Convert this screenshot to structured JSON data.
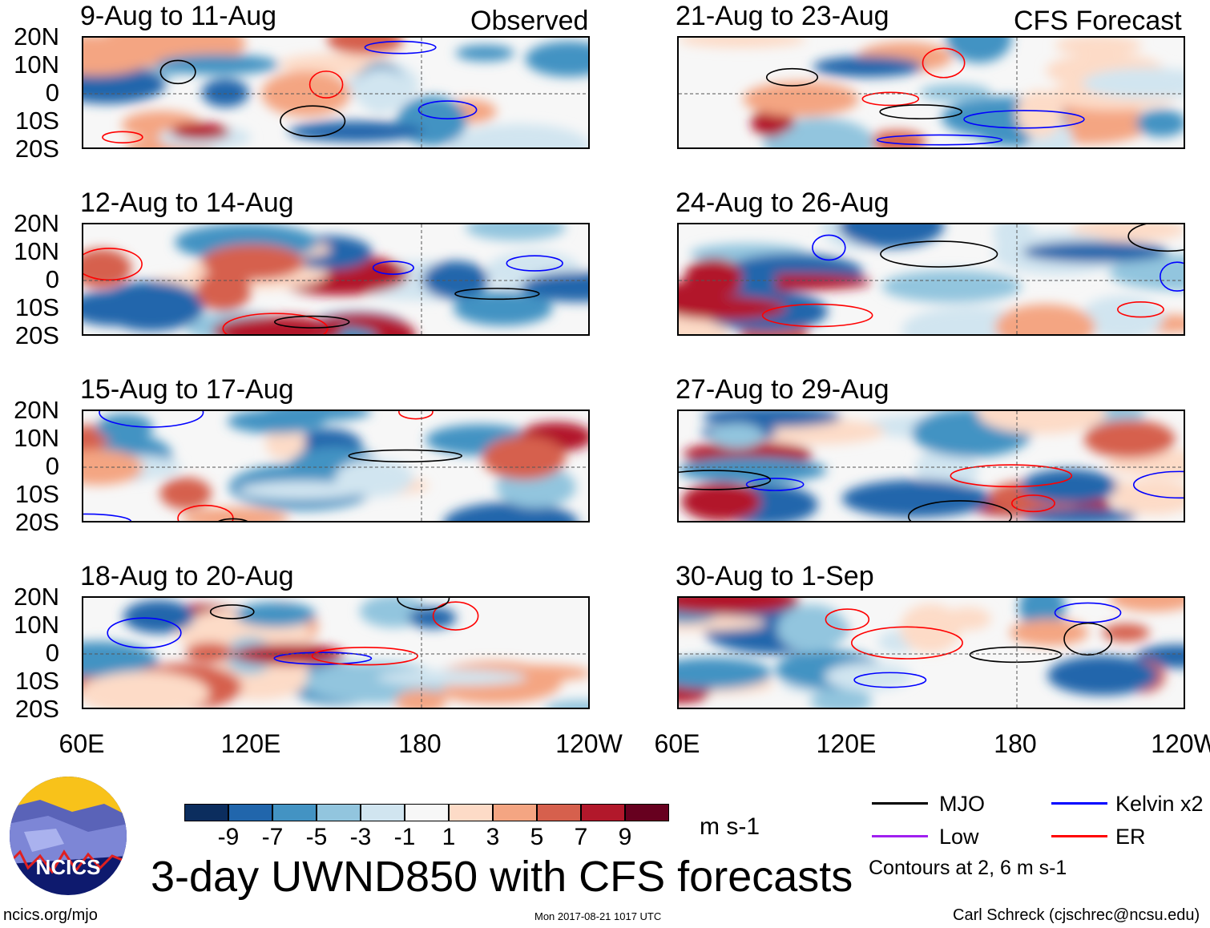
{
  "panels_left": [
    {
      "title": "9-Aug to 11-Aug",
      "label": "Observed"
    },
    {
      "title": "12-Aug to 14-Aug"
    },
    {
      "title": "15-Aug to 17-Aug"
    },
    {
      "title": "18-Aug to 20-Aug"
    }
  ],
  "panels_right": [
    {
      "title": "21-Aug to 23-Aug",
      "label": "CFS Forecast"
    },
    {
      "title": "24-Aug to 26-Aug"
    },
    {
      "title": "27-Aug to 29-Aug"
    },
    {
      "title": "30-Aug to 1-Sep"
    }
  ],
  "lat_labels": [
    "20N",
    "10N",
    "0",
    "10S",
    "20S"
  ],
  "lon_labels": [
    "60E",
    "120E",
    "180",
    "120W"
  ],
  "colorbar": {
    "colors": [
      "#0b2d5e",
      "#2166ac",
      "#4393c3",
      "#92c5de",
      "#d1e5f0",
      "#f7f7f7",
      "#fddbc7",
      "#f4a582",
      "#d6604d",
      "#b2182b",
      "#67001f"
    ],
    "labels": [
      "-9",
      "-7",
      "-5",
      "-3",
      "-1",
      "1",
      "3",
      "5",
      "7",
      "9"
    ],
    "units": "m s-1"
  },
  "title": "3-day UWND850 with CFS forecasts",
  "legend": {
    "items": [
      {
        "label": "MJO",
        "color": "#000000"
      },
      {
        "label": "Kelvin x2",
        "color": "#0000ff"
      },
      {
        "label": "Low",
        "color": "#a020f0"
      },
      {
        "label": "ER",
        "color": "#ff0000"
      }
    ],
    "contours_note": "Contours at 2, 6 m s-1"
  },
  "logo_text": "NCICS",
  "footer": {
    "url": "ncics.org/mjo",
    "timestamp": "Mon 2017-08-21 1017 UTC",
    "credit": "Carl Schreck (cjschrec@ncsu.edu)"
  }
}
